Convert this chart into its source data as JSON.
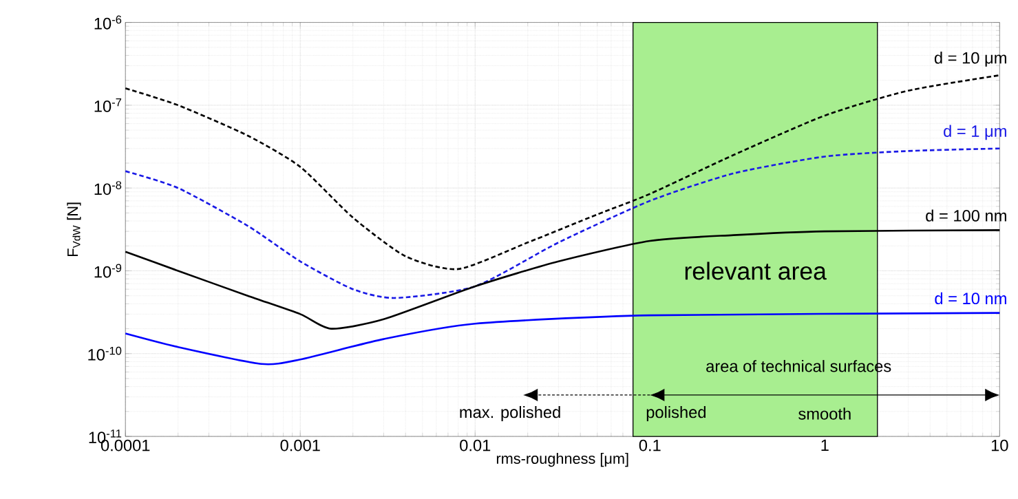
{
  "chart_data": {
    "type": "line",
    "xlabel": "rms-roughness [μm]",
    "ylabel": "F$_{VdW}$ [N]",
    "xlim": [
      0.0001,
      10
    ],
    "ylim": [
      1e-11,
      1e-06
    ],
    "log": "xy",
    "grid": true,
    "xticks": [
      {
        "value": 0.0001,
        "label": "0.0001"
      },
      {
        "value": 0.001,
        "label": "0.001"
      },
      {
        "value": 0.01,
        "label": "0.01"
      },
      {
        "value": 0.1,
        "label": "0.1"
      },
      {
        "value": 1,
        "label": "1"
      },
      {
        "value": 10,
        "label": "10"
      }
    ],
    "yticks": [
      {
        "value": 1e-11,
        "label": "10$^{-11}$"
      },
      {
        "value": 1e-10,
        "label": "10$^{-10}$"
      },
      {
        "value": 1e-09,
        "label": "10$^{-9}$"
      },
      {
        "value": 1e-08,
        "label": "10$^{-8}$"
      },
      {
        "value": 1e-07,
        "label": "10$^{-7}$"
      },
      {
        "value": 1e-06,
        "label": "10$^{-6}$"
      }
    ],
    "series": [
      {
        "name": "d = 10 μm",
        "color": "#000000",
        "line_style": "dashed",
        "x": [
          0.0001,
          0.0002,
          0.0005,
          0.001,
          0.002,
          0.004,
          0.008,
          0.02,
          0.05,
          0.1,
          0.3,
          1,
          3,
          10
        ],
        "values": [
          1.6e-07,
          1e-07,
          4.3e-08,
          1.8e-08,
          4.4e-09,
          1.5e-09,
          1.05e-09,
          2.2e-09,
          4.8e-09,
          8.5e-09,
          2.5e-08,
          7.5e-08,
          1.5e-07,
          2.3e-07
        ]
      },
      {
        "name": "d = 1 μm",
        "color": "#1a1ae6",
        "line_style": "dashed",
        "x": [
          0.0001,
          0.0002,
          0.0005,
          0.001,
          0.002,
          0.0035,
          0.01,
          0.03,
          0.1,
          0.3,
          1,
          3,
          10
        ],
        "values": [
          1.6e-08,
          1e-08,
          3.5e-09,
          1.3e-09,
          6e-10,
          4.7e-10,
          6.5e-10,
          2.2e-09,
          7e-09,
          1.5e-08,
          2.4e-08,
          2.8e-08,
          3e-08
        ]
      },
      {
        "name": "d = 100 nm",
        "color": "#000000",
        "line_style": "solid",
        "x": [
          0.0001,
          0.0002,
          0.0005,
          0.001,
          0.0015,
          0.003,
          0.01,
          0.03,
          0.1,
          0.3,
          1,
          10
        ],
        "values": [
          1.7e-09,
          1e-09,
          5e-10,
          3e-10,
          2e-10,
          2.6e-10,
          6.5e-10,
          1.3e-09,
          2.3e-09,
          2.7e-09,
          3e-09,
          3.1e-09
        ]
      },
      {
        "name": "d = 10 nm",
        "color": "#0000ff",
        "line_style": "solid",
        "x": [
          0.0001,
          0.0002,
          0.0006,
          0.001,
          0.003,
          0.01,
          0.1,
          10
        ],
        "values": [
          1.75e-10,
          1.2e-10,
          7.5e-11,
          8.5e-11,
          1.5e-10,
          2.3e-10,
          2.9e-10,
          3.1e-10
        ]
      }
    ],
    "bands": [
      {
        "axis": "x",
        "from": 0.08,
        "to": 2,
        "label": "relevant area",
        "color": "#a8ee90"
      }
    ],
    "annotations": [
      "area of technical surfaces",
      "max. polished",
      "polished",
      "smooth"
    ]
  }
}
